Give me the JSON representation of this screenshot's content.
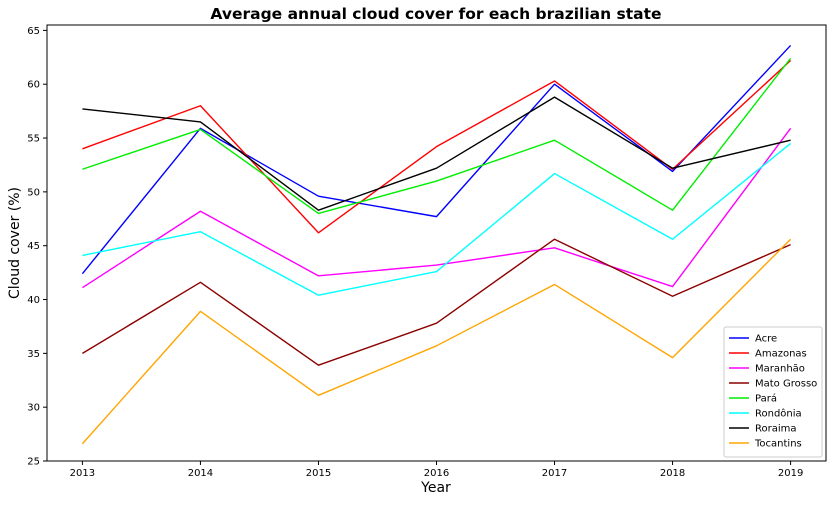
{
  "chart_data": {
    "type": "line",
    "title": "Average annual cloud cover for each brazilian state",
    "xlabel": "Year",
    "ylabel": "Cloud cover (%)",
    "x": [
      "2013",
      "2014",
      "2015",
      "2016",
      "2017",
      "2018",
      "2019"
    ],
    "xlim": [
      2012.7,
      2019.3
    ],
    "ylim": [
      25,
      65.5
    ],
    "yticks": [
      "25",
      "30",
      "35",
      "40",
      "45",
      "50",
      "55",
      "60",
      "65"
    ],
    "grid": false,
    "legend_position": "lower right",
    "series": [
      {
        "name": "Acre",
        "color": "#0000ff",
        "values": [
          42.4,
          55.9,
          49.6,
          47.7,
          60.0,
          51.9,
          63.6
        ]
      },
      {
        "name": "Amazonas",
        "color": "#ff0000",
        "values": [
          54.0,
          58.0,
          46.2,
          54.2,
          60.3,
          52.1,
          62.2
        ]
      },
      {
        "name": "Maranhão",
        "color": "#ff00ff",
        "values": [
          41.1,
          48.2,
          42.2,
          43.2,
          44.8,
          41.2,
          55.9
        ]
      },
      {
        "name": "Mato Grosso",
        "color": "#8b0000",
        "values": [
          35.0,
          41.6,
          33.9,
          37.8,
          45.6,
          40.3,
          45.1
        ]
      },
      {
        "name": "Pará",
        "color": "#00ee00",
        "values": [
          52.1,
          55.8,
          48.0,
          51.0,
          54.8,
          48.3,
          62.4
        ]
      },
      {
        "name": "Rondônia",
        "color": "#00ffff",
        "values": [
          44.1,
          46.3,
          40.4,
          42.6,
          51.7,
          45.6,
          54.5
        ]
      },
      {
        "name": "Roraima",
        "color": "#000000",
        "values": [
          57.7,
          56.5,
          48.3,
          52.2,
          58.8,
          52.2,
          54.8
        ]
      },
      {
        "name": "Tocantins",
        "color": "#ffa500",
        "values": [
          26.6,
          38.9,
          31.1,
          35.7,
          41.4,
          34.6,
          45.6
        ]
      }
    ]
  }
}
